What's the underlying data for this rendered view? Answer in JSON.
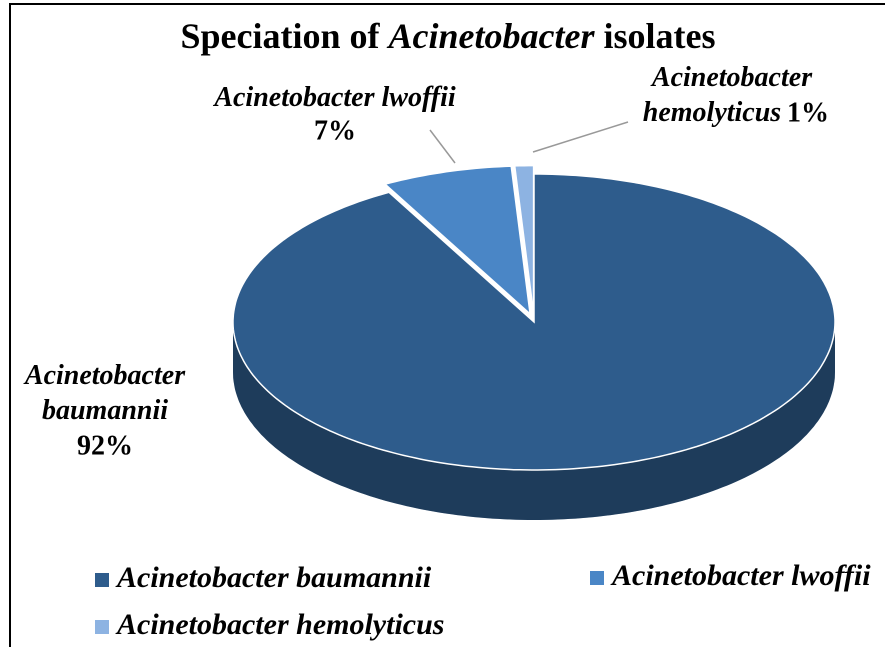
{
  "chart_data": {
    "type": "pie",
    "title": [
      "Speciation of",
      "Acinetobacter",
      "isolates"
    ],
    "categories": [
      "Acinetobacter baumannii",
      "Acinetobacter lwoffii",
      "Acinetobacter hemolyticus"
    ],
    "values": [
      92,
      7,
      1
    ],
    "value_labels": [
      "92%",
      "7%",
      "1%"
    ],
    "colors": [
      "#2e5c8c",
      "#4a86c6",
      "#8db3e2"
    ],
    "legend": "bottom"
  }
}
